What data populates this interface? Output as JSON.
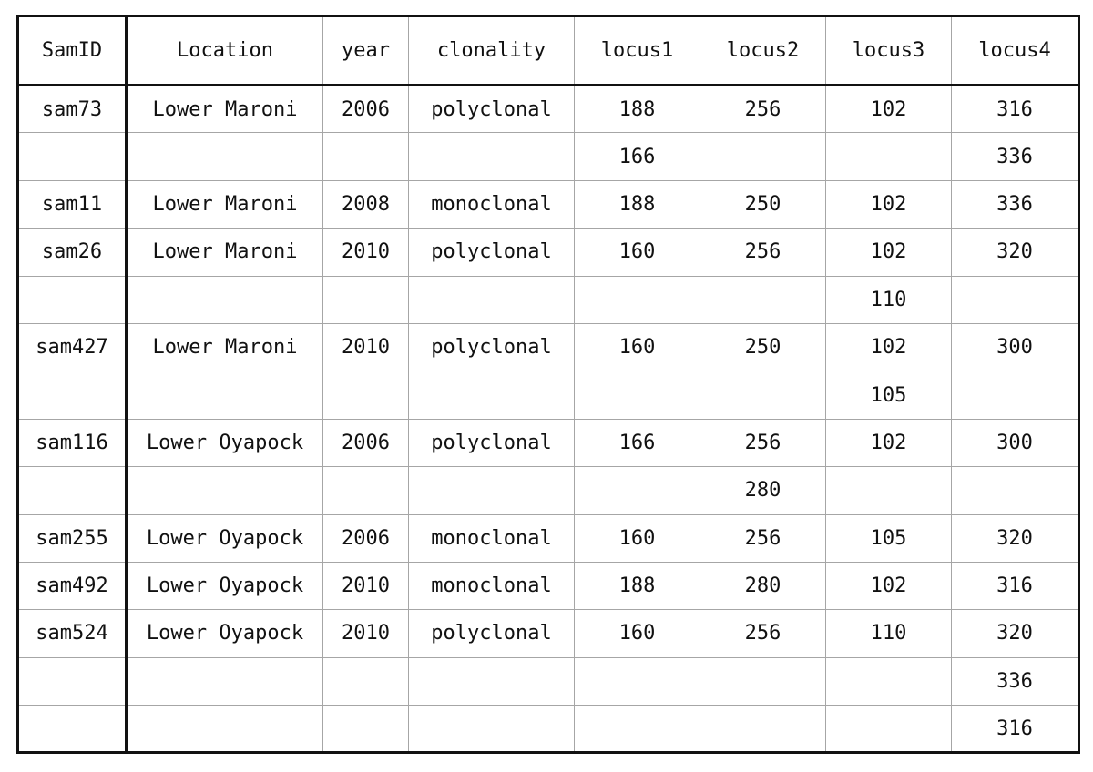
{
  "table": {
    "headers": [
      "SamID",
      "Location",
      "year",
      "clonality",
      "locus1",
      "locus2",
      "locus3",
      "locus4"
    ],
    "rows": [
      [
        "sam73",
        "Lower Maroni",
        "2006",
        "polyclonal",
        "188",
        "256",
        "102",
        "316"
      ],
      [
        "",
        "",
        "",
        "",
        "166",
        "",
        "",
        "336"
      ],
      [
        "sam11",
        "Lower Maroni",
        "2008",
        "monoclonal",
        "188",
        "250",
        "102",
        "336"
      ],
      [
        "sam26",
        "Lower Maroni",
        "2010",
        "polyclonal",
        "160",
        "256",
        "102",
        "320"
      ],
      [
        "",
        "",
        "",
        "",
        "",
        "",
        "110",
        ""
      ],
      [
        "sam427",
        "Lower Maroni",
        "2010",
        "polyclonal",
        "160",
        "250",
        "102",
        "300"
      ],
      [
        "",
        "",
        "",
        "",
        "",
        "",
        "105",
        ""
      ],
      [
        "sam116",
        "Lower Oyapock",
        "2006",
        "polyclonal",
        "166",
        "256",
        "102",
        "300"
      ],
      [
        "",
        "",
        "",
        "",
        "",
        "280",
        "",
        ""
      ],
      [
        "sam255",
        "Lower Oyapock",
        "2006",
        "monoclonal",
        "160",
        "256",
        "105",
        "320"
      ],
      [
        "sam492",
        "Lower Oyapock",
        "2010",
        "monoclonal",
        "188",
        "280",
        "102",
        "316"
      ],
      [
        "sam524",
        "Lower Oyapock",
        "2010",
        "polyclonal",
        "160",
        "256",
        "110",
        "320"
      ],
      [
        "",
        "",
        "",
        "",
        "",
        "",
        "",
        "336"
      ],
      [
        "",
        "",
        "",
        "",
        "",
        "",
        "",
        "316"
      ]
    ]
  }
}
